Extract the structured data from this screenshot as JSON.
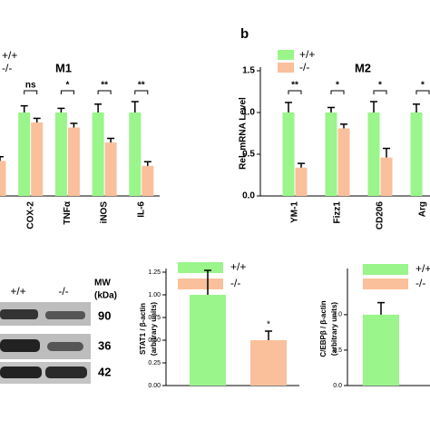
{
  "chart_data": [
    {
      "type": "bar",
      "title": "M1",
      "categories": [
        null,
        "COX-2",
        "TNFα",
        "iNOS",
        "IL-6"
      ],
      "series": [
        {
          "name": "+/+",
          "color": "#9af58a",
          "values": [
            null,
            1.0,
            1.0,
            1.0,
            1.0
          ],
          "errors": [
            null,
            0.08,
            0.05,
            0.1,
            0.13
          ]
        },
        {
          "name": "-/-",
          "color": "#f9c09b",
          "values": [
            0.42,
            0.88,
            0.82,
            0.64,
            0.36
          ],
          "errors": [
            0.05,
            0.05,
            0.05,
            0.05,
            0.05
          ]
        }
      ],
      "significance": [
        null,
        "ns",
        "*",
        "**",
        "**"
      ],
      "ylim": [
        0,
        1.5
      ]
    },
    {
      "type": "bar",
      "panel": "b",
      "title": "M2",
      "ylabel": "Rel. mRNA Level",
      "categories": [
        "YM-1",
        "Fizz1",
        "CD206",
        "Arg"
      ],
      "series": [
        {
          "name": "+/+",
          "color": "#9af58a",
          "values": [
            1.0,
            1.0,
            1.0,
            1.0
          ],
          "errors": [
            0.12,
            0.06,
            0.13,
            0.1
          ]
        },
        {
          "name": "-/-",
          "color": "#f9c09b",
          "values": [
            0.34,
            0.81,
            0.46,
            null
          ],
          "errors": [
            0.05,
            0.05,
            0.11,
            null
          ]
        }
      ],
      "significance": [
        "**",
        "*",
        "*",
        "*"
      ],
      "ylim": [
        0,
        1.5
      ],
      "yticks": [
        {
          "value": 0,
          "label": "0.0"
        },
        {
          "value": 0.5,
          "label": "0.5"
        },
        {
          "value": 1,
          "label": "1.0"
        },
        {
          "value": 1.5,
          "label": "1.5"
        }
      ]
    },
    {
      "type": "bar",
      "ylabel": [
        "STAT1 / β-actin",
        "(arbitrary units)"
      ],
      "series": [
        {
          "name": "+/+",
          "color": "#9af58a",
          "values": [
            1.0
          ],
          "errors": [
            0.27
          ]
        },
        {
          "name": "-/-",
          "color": "#f9c09b",
          "values": [
            0.5
          ],
          "errors": [
            0.1
          ],
          "significance": [
            "*"
          ]
        }
      ],
      "ylim": [
        0,
        1.25
      ],
      "yticks": [
        {
          "value": 0,
          "label": "0.00"
        },
        {
          "value": 0.25,
          "label": "0.25"
        },
        {
          "value": 0.5,
          "label": "0.50"
        },
        {
          "value": 0.75,
          "label": "0.75"
        },
        {
          "value": 1,
          "label": "1.00"
        },
        {
          "value": 1.25,
          "label": "1.25"
        }
      ]
    },
    {
      "type": "bar",
      "ylabel": [
        "C/EBPβ / β-actin",
        "(arbitrary units)"
      ],
      "series": [
        {
          "name": "+/+",
          "color": "#9af58a",
          "values": [
            1.0
          ],
          "errors": [
            0.17
          ]
        },
        {
          "name": "-/-",
          "color": "#f9c09b",
          "values": [
            null
          ],
          "errors": [
            null
          ]
        }
      ],
      "ylim": [
        0,
        1.6
      ],
      "yticks": [
        {
          "value": 0,
          "label": "0.0"
        },
        {
          "value": 0.5,
          "label": "0.5"
        },
        {
          "value": 1,
          "label": "1.0"
        }
      ]
    }
  ],
  "blot": {
    "lanes": [
      "+/+",
      "-/-"
    ],
    "mw_header": [
      "MW",
      "(kDa)"
    ],
    "markers": [
      90,
      36,
      42
    ]
  }
}
